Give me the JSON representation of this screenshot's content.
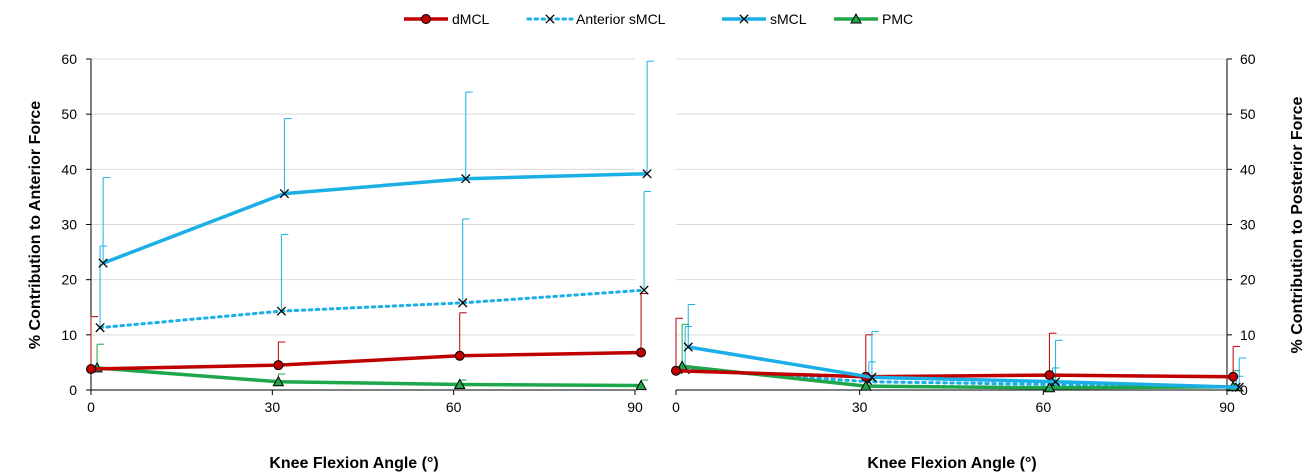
{
  "legend": [
    {
      "label": "dMCL",
      "color": "#C00000",
      "marker": "circle",
      "dash": false
    },
    {
      "label": "Anterior sMCL",
      "color": "#1AAFE6",
      "marker": "x",
      "dash": true
    },
    {
      "label": "sMCL",
      "color": "#1AAFE6",
      "marker": "x",
      "dash": false
    },
    {
      "label": "PMC",
      "color": "#1EA64B",
      "marker": "triangle",
      "dash": false
    }
  ],
  "chart_data": [
    {
      "type": "line",
      "xlabel": "Knee Flexion Angle (°)",
      "ylabel": "% Contribution to Anterior Force",
      "xlim": [
        0,
        90
      ],
      "ylim": [
        0,
        60
      ],
      "xticks": [
        "0",
        "30",
        "60",
        "90"
      ],
      "yticks": [
        "0",
        "10",
        "20",
        "30",
        "40",
        "50",
        "60"
      ],
      "grid": true,
      "legend_position": "top",
      "series": [
        {
          "name": "dMCL",
          "x": [
            0,
            31,
            61,
            91
          ],
          "values": [
            3.8,
            4.5,
            6.2,
            6.8
          ],
          "error_upper": [
            13.3,
            8.7,
            14.0,
            17.5
          ]
        },
        {
          "name": "Anterior sMCL",
          "x": [
            1.5,
            31.5,
            61.5,
            91.5
          ],
          "values": [
            11.3,
            14.3,
            15.8,
            18.1
          ],
          "error_upper": [
            26.1,
            28.2,
            31.0,
            36.0
          ]
        },
        {
          "name": "sMCL",
          "x": [
            2,
            32,
            62,
            92
          ],
          "values": [
            23.0,
            35.6,
            38.3,
            39.2
          ],
          "error_upper": [
            38.5,
            49.2,
            54.0,
            59.6
          ]
        },
        {
          "name": "PMC",
          "x": [
            1,
            31,
            61,
            91
          ],
          "values": [
            4.0,
            1.5,
            1.0,
            0.8
          ],
          "error_upper": [
            8.3,
            2.9,
            1.8,
            1.8
          ]
        }
      ]
    },
    {
      "type": "line",
      "xlabel": "Knee Flexion Angle (°)",
      "ylabel": "% Contribution to Posterior Force",
      "xlim": [
        0,
        90
      ],
      "ylim": [
        0,
        60
      ],
      "xticks": [
        "0",
        "30",
        "60",
        "90"
      ],
      "yticks": [
        "0",
        "10",
        "20",
        "30",
        "40",
        "50",
        "60"
      ],
      "grid": true,
      "y_axis_side": "right",
      "series": [
        {
          "name": "dMCL",
          "x": [
            0,
            31,
            61,
            91
          ],
          "values": [
            3.5,
            2.4,
            2.7,
            2.4
          ],
          "error_upper": [
            13.0,
            10.0,
            10.3,
            7.9
          ]
        },
        {
          "name": "Anterior sMCL",
          "x": [
            1.5,
            31.5,
            61.5,
            91.5
          ],
          "values": [
            3.7,
            1.5,
            1.0,
            0.5
          ],
          "error_upper": [
            11.5,
            5.1,
            4.0,
            2.5
          ]
        },
        {
          "name": "sMCL",
          "x": [
            2,
            32,
            62,
            92
          ],
          "values": [
            7.8,
            2.3,
            1.5,
            0.5
          ],
          "error_upper": [
            15.5,
            10.6,
            9.0,
            5.8
          ]
        },
        {
          "name": "PMC",
          "x": [
            1,
            31,
            61,
            91
          ],
          "values": [
            4.3,
            0.7,
            0.4,
            0.6
          ],
          "error_upper": [
            11.9,
            1.8,
            2.3,
            3.5
          ]
        }
      ]
    }
  ]
}
